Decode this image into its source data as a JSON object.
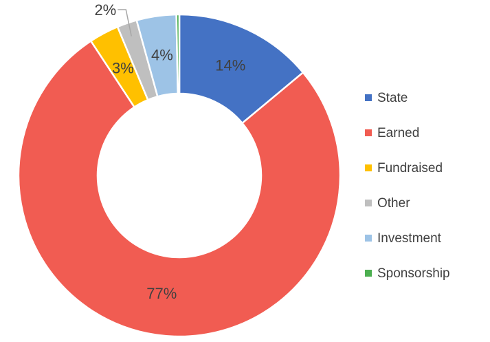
{
  "chart_data": {
    "type": "donut",
    "categories": [
      "State",
      "Earned",
      "Fundraised",
      "Other",
      "Investment",
      "Sponsorship"
    ],
    "values": [
      14,
      77,
      3,
      2,
      4,
      0.3
    ],
    "value_labels": [
      "14%",
      "77%",
      "3%",
      "2%",
      "4%",
      null
    ],
    "colors": [
      "#4472c4",
      "#f15c52",
      "#ffc000",
      "#bfbfbf",
      "#9dc3e6",
      "#4caf50"
    ],
    "legend": "right"
  }
}
